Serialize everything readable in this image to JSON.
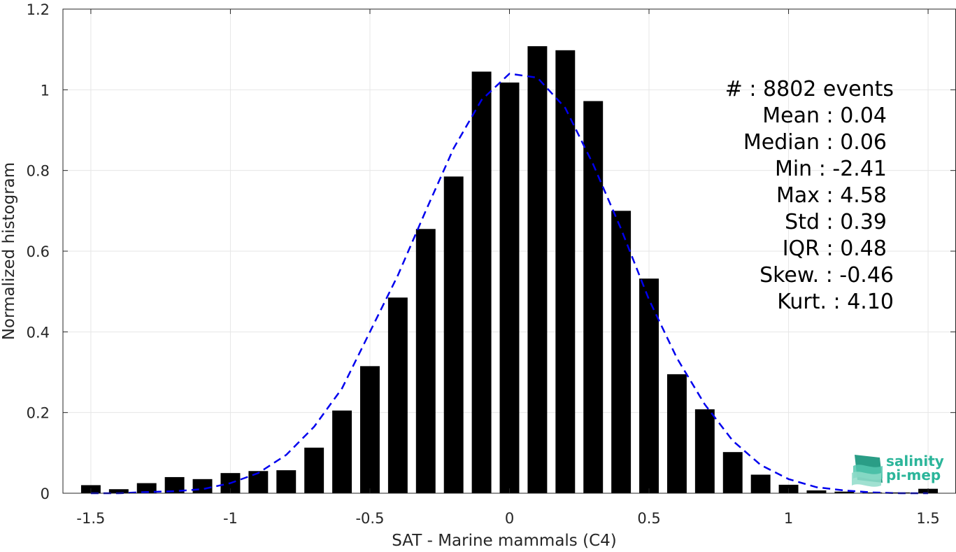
{
  "chart_data": {
    "type": "bar",
    "xlabel": "SAT - Marine mammals (C4)",
    "ylabel": "Normalized histogram",
    "xlim": [
      -1.6,
      1.6
    ],
    "ylim": [
      0,
      1.2
    ],
    "grid": true,
    "x_ticks": [
      "-1.5",
      "-1",
      "-0.5",
      "0",
      "0.5",
      "1",
      "1.5"
    ],
    "y_ticks": [
      "0",
      "0.2",
      "0.4",
      "0.6",
      "0.8",
      "1",
      "1.2"
    ],
    "bar_color": "#000000",
    "bar_width": 0.07,
    "series": [
      {
        "type": "bar",
        "x": [
          -1.5,
          -1.4,
          -1.3,
          -1.2,
          -1.1,
          -1.0,
          -0.9,
          -0.8,
          -0.7,
          -0.6,
          -0.5,
          -0.4,
          -0.3,
          -0.2,
          -0.1,
          0.0,
          0.1,
          0.2,
          0.3,
          0.4,
          0.5,
          0.6,
          0.7,
          0.8,
          0.9,
          1.0,
          1.1,
          1.2,
          1.3,
          1.4,
          1.5
        ],
        "values": [
          0.02,
          0.01,
          0.025,
          0.04,
          0.035,
          0.05,
          0.055,
          0.057,
          0.113,
          0.205,
          0.315,
          0.485,
          0.655,
          0.785,
          1.045,
          1.018,
          1.108,
          1.098,
          0.972,
          0.7,
          0.532,
          0.295,
          0.208,
          0.102,
          0.046,
          0.021,
          0.007,
          0.004,
          0.002,
          0.002,
          0.011
        ]
      },
      {
        "type": "line",
        "style": "dashed",
        "color": "#0000ee",
        "x": [
          -1.5,
          -1.4,
          -1.3,
          -1.2,
          -1.1,
          -1.0,
          -0.9,
          -0.8,
          -0.7,
          -0.6,
          -0.5,
          -0.4,
          -0.3,
          -0.2,
          -0.1,
          0.0,
          0.1,
          0.2,
          0.3,
          0.4,
          0.5,
          0.6,
          0.7,
          0.8,
          0.9,
          1.0,
          1.1,
          1.2,
          1.3,
          1.4,
          1.5
        ],
        "values": [
          0.0,
          0.0,
          0.003,
          0.005,
          0.01,
          0.025,
          0.05,
          0.095,
          0.165,
          0.26,
          0.4,
          0.54,
          0.7,
          0.855,
          0.975,
          1.04,
          1.03,
          0.955,
          0.815,
          0.655,
          0.48,
          0.335,
          0.22,
          0.13,
          0.07,
          0.035,
          0.015,
          0.007,
          0.002,
          0.0,
          0.0
        ]
      }
    ]
  },
  "stats": [
    "#  : 8802 events",
    "Mean : 0.04",
    "Median : 0.06",
    "Min : -2.41",
    "Max : 4.58",
    "Std : 0.39",
    "IQR : 0.48",
    "Skew. : -0.46",
    "Kurt. : 4.10"
  ],
  "logo": {
    "line1": "salinity",
    "line2": "pi-mep",
    "color": "#2bb59a"
  }
}
